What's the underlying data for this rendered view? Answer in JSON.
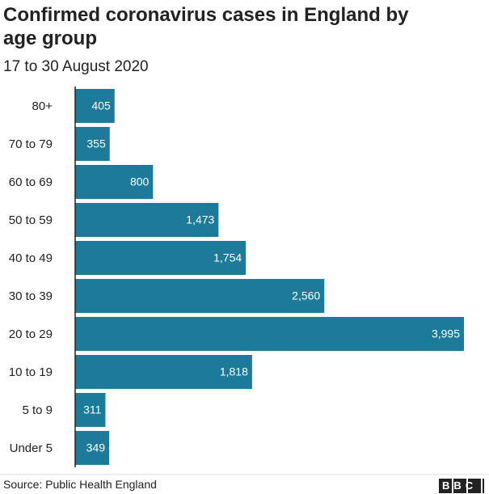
{
  "chart_data": {
    "type": "hbar",
    "title": "Confirmed coronavirus cases in England by age group",
    "subtitle": "17 to 30 August 2020",
    "categories": [
      "80+",
      "70 to 79",
      "60 to 69",
      "50 to 59",
      "40 to 49",
      "30 to 39",
      "20 to 29",
      "10 to 19",
      "5 to 9",
      "Under 5"
    ],
    "values": [
      405,
      355,
      800,
      1473,
      1754,
      2560,
      3995,
      1818,
      311,
      349
    ],
    "value_labels": [
      "405",
      "355",
      "800",
      "1,473",
      "1,754",
      "2,560",
      "3,995",
      "1,818",
      "311",
      "349"
    ],
    "color": "#1b7b99",
    "source": "Source: Public Health England",
    "logo": "BBC"
  }
}
